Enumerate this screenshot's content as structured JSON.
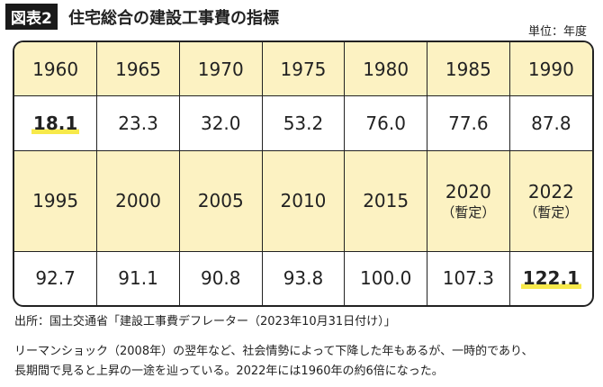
{
  "header": {
    "badge": "図表2",
    "title": "住宅総合の建設工事費の指標",
    "unit": "単位：年度"
  },
  "table": {
    "rows": [
      [
        "1960",
        "1965",
        "1970",
        "1975",
        "1980",
        "1985",
        "1990"
      ],
      [
        "18.1",
        "23.3",
        "32.0",
        "53.2",
        "76.0",
        "77.6",
        "87.8"
      ],
      [
        "1995",
        "2000",
        "2005",
        "2010",
        "2015",
        [
          "2020",
          "（暫定）"
        ],
        [
          "2022",
          "（暫定）"
        ]
      ],
      [
        "92.7",
        "91.1",
        "90.8",
        "93.8",
        "100.0",
        "107.3",
        "122.1"
      ]
    ]
  },
  "source": "出所：国土交通省「建設工事費デフレーター（2023年10月31日付け）」",
  "caption": [
    "リーマンショック（2008年）の翌年など、社会情勢によって下降した年もあるが、一時的であり、",
    "長期間で見ると上昇の一途を辿っている。2022年には1960年の約6倍になった。"
  ]
}
